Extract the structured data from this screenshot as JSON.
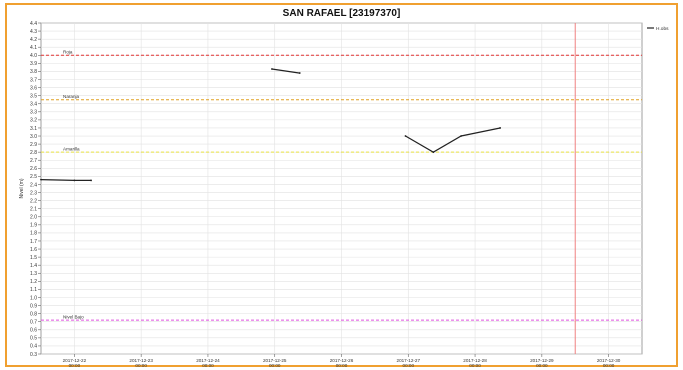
{
  "chart_data": {
    "type": "line",
    "title": "SAN RAFAEL [23197370]",
    "ylabel": "Nivel (m)",
    "xlabel": "",
    "ylim": [
      0.3,
      4.4
    ],
    "y_ticks": [
      0.3,
      0.4,
      0.5,
      0.6,
      0.7,
      0.8,
      0.9,
      1.0,
      1.1,
      1.2,
      1.3,
      1.4,
      1.5,
      1.6,
      1.7,
      1.8,
      1.9,
      2.0,
      2.1,
      2.2,
      2.3,
      2.4,
      2.5,
      2.6,
      2.7,
      2.8,
      2.9,
      3.0,
      3.1,
      3.2,
      3.3,
      3.4,
      3.5,
      3.6,
      3.7,
      3.8,
      3.9,
      4.0,
      4.1,
      4.2,
      4.3,
      4.4
    ],
    "x_range": [
      "2017-12-21 12:00",
      "2017-12-30 12:00"
    ],
    "x_ticks": [
      {
        "date": "2017-12-22",
        "time": "00:00"
      },
      {
        "date": "2017-12-23",
        "time": "00:00"
      },
      {
        "date": "2017-12-24",
        "time": "00:00"
      },
      {
        "date": "2017-12-25",
        "time": "00:00"
      },
      {
        "date": "2017-12-26",
        "time": "00:00"
      },
      {
        "date": "2017-12-27",
        "time": "00:00"
      },
      {
        "date": "2017-12-28",
        "time": "00:00"
      },
      {
        "date": "2017-12-29",
        "time": "00:00"
      },
      {
        "date": "2017-12-30",
        "time": "00:00"
      }
    ],
    "grid": true,
    "legend": "top-right",
    "series": [
      {
        "name": "H.obs",
        "color": "#222222",
        "segments": [
          [
            [
              "2017-12-21 12:00",
              2.46
            ],
            [
              "2017-12-22 00:00",
              2.45
            ],
            [
              "2017-12-22 06:00",
              2.45
            ]
          ],
          [
            [
              "2017-12-24 23:00",
              3.83
            ],
            [
              "2017-12-25 09:00",
              3.78
            ]
          ],
          [
            [
              "2017-12-26 23:00",
              3.0
            ],
            [
              "2017-12-27 09:00",
              2.8
            ],
            [
              "2017-12-27 19:00",
              3.0
            ],
            [
              "2017-12-28 09:00",
              3.1
            ]
          ]
        ]
      }
    ],
    "thresholds": [
      {
        "label": "Roja",
        "value": 4.0,
        "color": "#e03030"
      },
      {
        "label": "Naranja",
        "value": 3.45,
        "color": "#e0a020"
      },
      {
        "label": "Amarilla",
        "value": 2.8,
        "color": "#e8e040"
      },
      {
        "label": "Nivel Bajo",
        "value": 0.72,
        "color": "#e050e0"
      }
    ],
    "now_marker": {
      "x": "2017-12-29 12:00",
      "color": "#f08080"
    }
  }
}
